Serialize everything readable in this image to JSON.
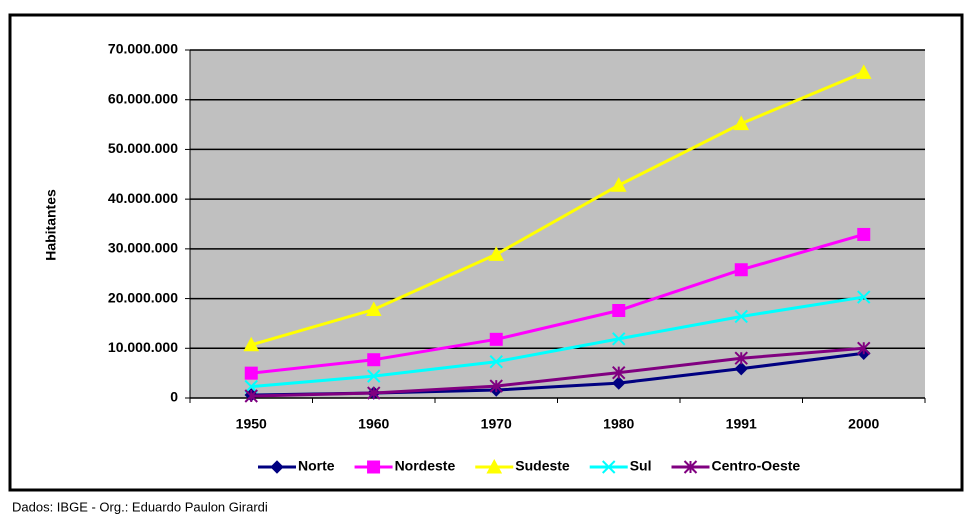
{
  "chart_data": {
    "type": "line",
    "y_label": "Habitantes",
    "categories": [
      "1950",
      "1960",
      "1970",
      "1980",
      "1991",
      "2000"
    ],
    "series": [
      {
        "name": "Norte",
        "color": "#000080",
        "marker": "diamond",
        "values": [
          600000,
          1000000,
          1600000,
          3000000,
          5900000,
          9000000
        ]
      },
      {
        "name": "Nordeste",
        "color": "#FF00FF",
        "marker": "square",
        "values": [
          5000000,
          7700000,
          11800000,
          17600000,
          25800000,
          32900000
        ]
      },
      {
        "name": "Sudeste",
        "color": "#FFFF00",
        "marker": "triangle",
        "values": [
          10700000,
          17800000,
          28900000,
          42800000,
          55200000,
          65500000
        ]
      },
      {
        "name": "Sul",
        "color": "#00FFFF",
        "marker": "x",
        "values": [
          2300000,
          4400000,
          7300000,
          11900000,
          16400000,
          20300000
        ]
      },
      {
        "name": "Centro-Oeste",
        "color": "#800080",
        "marker": "star",
        "values": [
          400000,
          1000000,
          2400000,
          5100000,
          8000000,
          10000000
        ]
      }
    ],
    "ylim": [
      0,
      70000000
    ],
    "yticks": [
      0,
      {
        "value": 10000000,
        "label": "10.000.000"
      },
      {
        "value": 20000000,
        "label": "20.000.000"
      },
      {
        "value": 30000000,
        "label": "30.000.000"
      },
      {
        "value": 40000000,
        "label": "40.000.000"
      },
      {
        "value": 50000000,
        "label": "50.000.000"
      },
      {
        "value": 60000000,
        "label": "60.000.000"
      },
      {
        "value": 70000000,
        "label": "70.000.000"
      }
    ],
    "grid": true,
    "plot_background": "#C0C0C0",
    "legend": "bottom",
    "source": "Dados: IBGE - Org.: Eduardo Paulon Girardi"
  }
}
